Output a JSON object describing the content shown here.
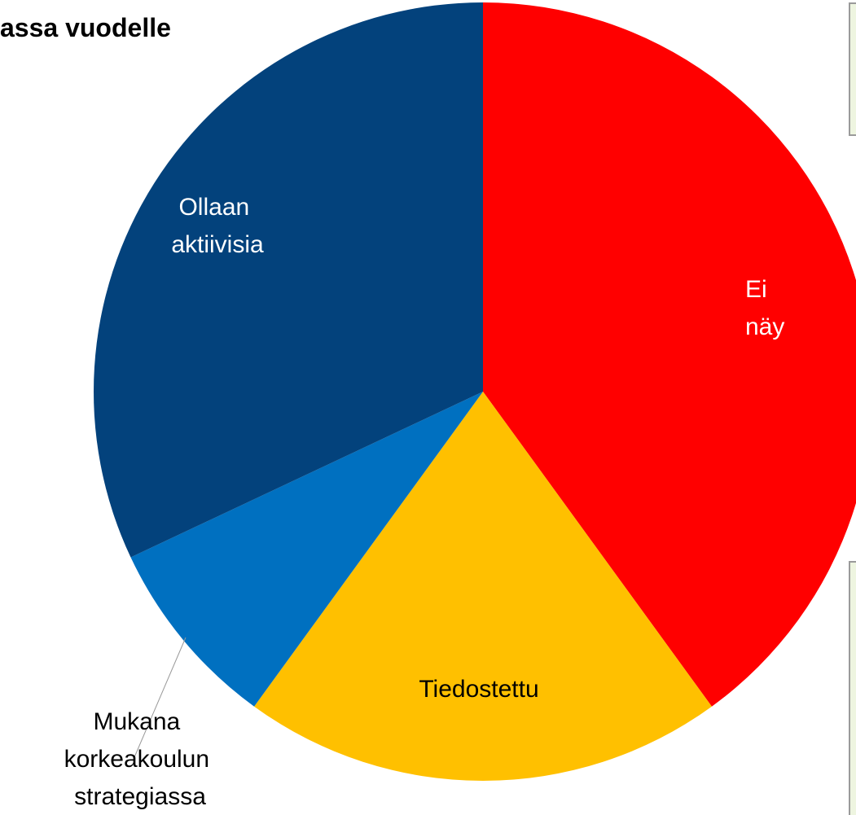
{
  "chart_data": {
    "type": "pie",
    "title": "assa vuodelle",
    "categories": [
      "Ei näy",
      "Tiedostettu",
      "Mukana korkeakoulun strategiassa",
      "Ollaan aktiivisia"
    ],
    "values": [
      40,
      20,
      8,
      32
    ],
    "colors": [
      "#ff0000",
      "#ffc000",
      "#0070c0",
      "#03427c"
    ]
  }
}
